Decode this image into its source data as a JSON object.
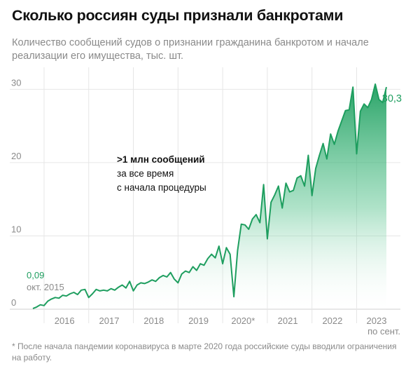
{
  "title": "Сколько россиян суды признали банкротами",
  "subtitle": "Количество сообщений судов о признании гражданина банкротом и начале реализации его имущества, тыс. шт.",
  "footnote": "* После начала пандемии коронавируса в марте 2020 года российские суды вводили ограничения на работу.",
  "annotation": {
    "headline": ">1 млн сообщений",
    "line1": "за все время",
    "line2": "с начала процедуры"
  },
  "start_label": {
    "value": "0,09",
    "date": "окт. 2015"
  },
  "end_label": {
    "value": "30,3"
  },
  "last_tick_sub": "по сент.",
  "colors": {
    "line": "#1e9e5f",
    "fill_top": "#1e9e5f",
    "grid": "#e6e6e6",
    "text_muted": "#8a8a8a"
  },
  "chart_data": {
    "type": "area",
    "title": "Сколько россиян суды признали банкротами",
    "ylabel": "тыс. шт.",
    "x_ticks": [
      "2016",
      "2017",
      "2018",
      "2019",
      "2020*",
      "2021",
      "2022",
      "2023"
    ],
    "y_ticks": [
      0,
      10,
      20,
      30
    ],
    "ylim": [
      0,
      33
    ],
    "x_range": [
      "2015-10",
      "2023-09"
    ],
    "grid": "horizontal",
    "series": [
      {
        "x": [
          "2015-10",
          "2015-11",
          "2015-12",
          "2016-01",
          "2016-02",
          "2016-03",
          "2016-04",
          "2016-05",
          "2016-06",
          "2016-07",
          "2016-08",
          "2016-09",
          "2016-10",
          "2016-11",
          "2016-12",
          "2017-01",
          "2017-02",
          "2017-03",
          "2017-04",
          "2017-05",
          "2017-06",
          "2017-07",
          "2017-08",
          "2017-09",
          "2017-10",
          "2017-11",
          "2017-12",
          "2018-01",
          "2018-02",
          "2018-03",
          "2018-04",
          "2018-05",
          "2018-06",
          "2018-07",
          "2018-08",
          "2018-09",
          "2018-10",
          "2018-11",
          "2018-12",
          "2019-01",
          "2019-02",
          "2019-03",
          "2019-04",
          "2019-05",
          "2019-06",
          "2019-07",
          "2019-08",
          "2019-09",
          "2019-10",
          "2019-11",
          "2019-12",
          "2020-01",
          "2020-02",
          "2020-03",
          "2020-04",
          "2020-05",
          "2020-06",
          "2020-07",
          "2020-08",
          "2020-09",
          "2020-10",
          "2020-11",
          "2020-12",
          "2021-01",
          "2021-02",
          "2021-03",
          "2021-04",
          "2021-05",
          "2021-06",
          "2021-07",
          "2021-08",
          "2021-09",
          "2021-10",
          "2021-11",
          "2021-12",
          "2022-01",
          "2022-02",
          "2022-03",
          "2022-04",
          "2022-05",
          "2022-06",
          "2022-07",
          "2022-08",
          "2022-09",
          "2022-10",
          "2022-11",
          "2022-12",
          "2023-01",
          "2023-02",
          "2023-03",
          "2023-04",
          "2023-05",
          "2023-06",
          "2023-07",
          "2023-08",
          "2023-09"
        ],
        "values": [
          0.09,
          0.3,
          0.6,
          0.5,
          1.1,
          1.4,
          1.6,
          1.5,
          1.9,
          1.8,
          2.1,
          2.3,
          2.0,
          2.6,
          2.7,
          1.6,
          2.1,
          2.7,
          2.5,
          2.6,
          2.5,
          2.8,
          2.6,
          3.0,
          3.3,
          2.9,
          3.8,
          2.5,
          3.3,
          3.6,
          3.5,
          3.7,
          4.0,
          3.8,
          4.3,
          4.6,
          4.4,
          5.0,
          4.1,
          3.6,
          4.8,
          5.2,
          5.0,
          5.8,
          5.3,
          6.2,
          6.0,
          6.9,
          7.5,
          7.0,
          8.6,
          6.2,
          8.4,
          7.5,
          1.7,
          8.0,
          11.6,
          11.5,
          10.9,
          12.3,
          12.9,
          11.8,
          17.0,
          9.6,
          14.6,
          15.6,
          16.8,
          13.8,
          17.2,
          16.0,
          16.2,
          17.9,
          18.2,
          16.8,
          21.0,
          15.5,
          19.2,
          21.0,
          22.6,
          20.5,
          23.9,
          22.5,
          24.3,
          25.7,
          27.1,
          27.2,
          30.3,
          21.2,
          27.0,
          28.0,
          27.5,
          28.6,
          30.7,
          28.6,
          28.2,
          30.3
        ]
      }
    ]
  }
}
